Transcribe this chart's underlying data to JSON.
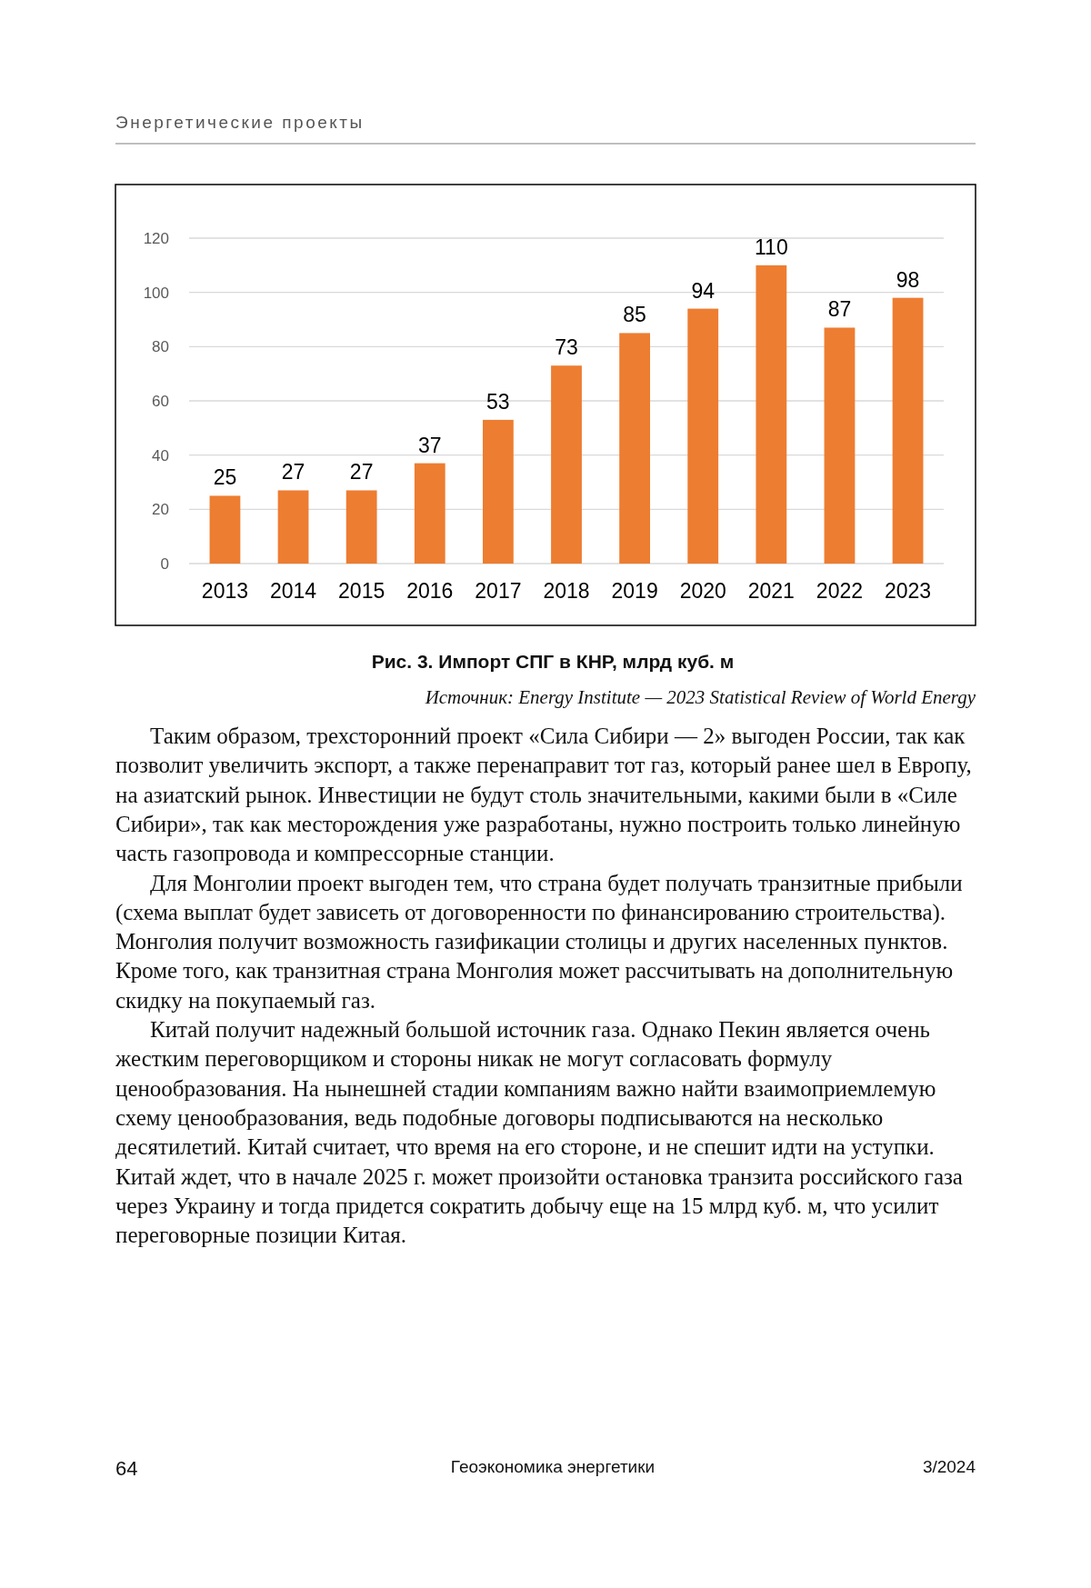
{
  "chart_data": {
    "type": "bar",
    "title": "Рис. 3. Импорт СПГ в КНР, млрд куб. м",
    "categories": [
      "2013",
      "2014",
      "2015",
      "2016",
      "2017",
      "2018",
      "2019",
      "2020",
      "2021",
      "2022",
      "2023"
    ],
    "values": [
      25,
      27,
      27,
      37,
      53,
      73,
      85,
      94,
      110,
      87,
      98
    ],
    "color": "#ed7d31",
    "ylim": [
      0,
      120
    ],
    "yticks": [
      0,
      20,
      40,
      60,
      80,
      100,
      120
    ],
    "grid": "y",
    "data_labels": true,
    "annotations": [
      "Энергетические проекты",
      "Источник: Energy Institute — 2023 Statistical Review of World Energy",
      "Таким образом, трехсторонний проект «Сила Сибири — 2» выгоден России, так как позволит увеличить экспорт, а также перенаправит тот газ, который ранее шел в Европу, на азиатский рынок. Инвестиции не будут столь значительными, какими были в «Силе Сибири», так как месторождения уже разработаны, нужно построить только линейную часть газопровода и компрессорные станции.",
      "Для Монголии проект выгоден тем, что страна будет получать транзитные прибыли (схема выплат будет зависеть от договоренности по финансированию строительства). Монголия получит возможность газификации столицы и других населенных пунктов. Кроме того, как транзитная страна Монголия может рассчитывать на дополнительную скидку на покупаемый газ.",
      "Китай получит надежный большой источник газа. Однако Пекин является очень жестким переговорщиком и стороны никак не могут согласовать формулу ценообразования. На нынешней стадии компаниям важно найти взаимоприемлемую схему ценообразования, ведь подобные договоры подписываются на несколько десятилетий. Китай считает, что время на его стороне, и не спешит идти на уступки. Китай ждет, что в начале 2025 г. может произойти остановка транзита российского газа через Украину и тогда придется сократить добычу еще на 15 млрд куб. м, что усилит переговорные позиции Китая.",
      "64",
      "Геоэкономика энергетики",
      "3/2024"
    ]
  }
}
